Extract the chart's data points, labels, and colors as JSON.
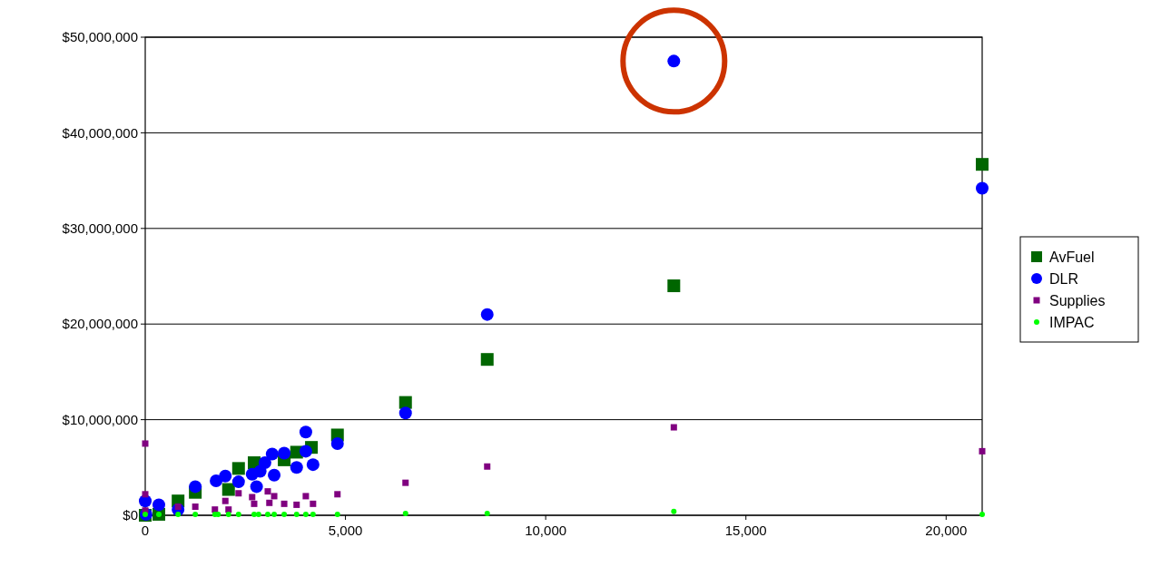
{
  "chart_data": {
    "type": "scatter",
    "xlim": [
      0,
      20900
    ],
    "ylim": [
      0,
      50000000
    ],
    "xticks": [
      0,
      {
        "value": 5000,
        "label": "5,000"
      },
      {
        "value": 10000,
        "label": "10,000"
      },
      {
        "value": 15000,
        "label": "15,000"
      },
      {
        "value": 20000,
        "label": "20,000"
      }
    ],
    "yticks": [
      {
        "value": 0,
        "label": "$0"
      },
      {
        "value": 10000000,
        "label": "$10,000,000"
      },
      {
        "value": 20000000,
        "label": "$20,000,000"
      },
      {
        "value": 30000000,
        "label": "$30,000,000"
      },
      {
        "value": 40000000,
        "label": "$40,000,000"
      },
      {
        "value": 50000000,
        "label": "$50,000,000"
      }
    ],
    "grid": "y",
    "legend": "right",
    "series": [
      {
        "name": "AvFuel",
        "color": "#006600",
        "marker": "square",
        "x": [
          0,
          340,
          820,
          1250,
          2080,
          2330,
          2720,
          3470,
          3780,
          4150,
          4800,
          6500,
          8540,
          13200,
          20900
        ],
        "values": [
          0,
          100000,
          1500000,
          2400000,
          2700000,
          4900000,
          5500000,
          5800000,
          6600000,
          7100000,
          8400000,
          11800000,
          16300000,
          24000000,
          36700000
        ]
      },
      {
        "name": "DLR",
        "color": "#0000ff",
        "marker": "circle",
        "x": [
          0,
          20,
          340,
          820,
          1250,
          1770,
          2000,
          2330,
          2670,
          2780,
          2870,
          2990,
          3170,
          3220,
          3470,
          3780,
          4010,
          4010,
          4190,
          4800,
          6500,
          8540,
          13200,
          20900
        ],
        "values": [
          1500000,
          100000,
          1100000,
          600000,
          3000000,
          3600000,
          4100000,
          3500000,
          4300000,
          3000000,
          4600000,
          5500000,
          6400000,
          4200000,
          6500000,
          5000000,
          8700000,
          6700000,
          5300000,
          7500000,
          10700000,
          21000000,
          47500000,
          34200000
        ]
      },
      {
        "name": "Supplies",
        "color": "#800080",
        "marker": "square",
        "x": [
          0,
          0,
          0,
          820,
          1250,
          1740,
          2000,
          2080,
          2330,
          2670,
          2720,
          3060,
          3100,
          3220,
          3470,
          3780,
          4010,
          4190,
          4800,
          6500,
          8540,
          13200,
          20900
        ],
        "values": [
          7500000,
          2200000,
          500000,
          900000,
          900000,
          600000,
          1500000,
          600000,
          2300000,
          1900000,
          1200000,
          2500000,
          1300000,
          2000000,
          1200000,
          1100000,
          2000000,
          1200000,
          2200000,
          3400000,
          5100000,
          9200000,
          6700000
        ]
      },
      {
        "name": "IMPAC",
        "color": "#00ff00",
        "marker": "circle",
        "x": [
          0,
          340,
          820,
          1250,
          1740,
          1820,
          2080,
          2330,
          2720,
          2830,
          3060,
          3220,
          3470,
          3780,
          4010,
          4190,
          4800,
          6500,
          8540,
          13200,
          20900
        ],
        "values": [
          100000,
          100000,
          100000,
          100000,
          100000,
          100000,
          100000,
          100000,
          100000,
          100000,
          100000,
          100000,
          100000,
          100000,
          100000,
          100000,
          100000,
          200000,
          200000,
          400000,
          100000
        ]
      }
    ]
  }
}
